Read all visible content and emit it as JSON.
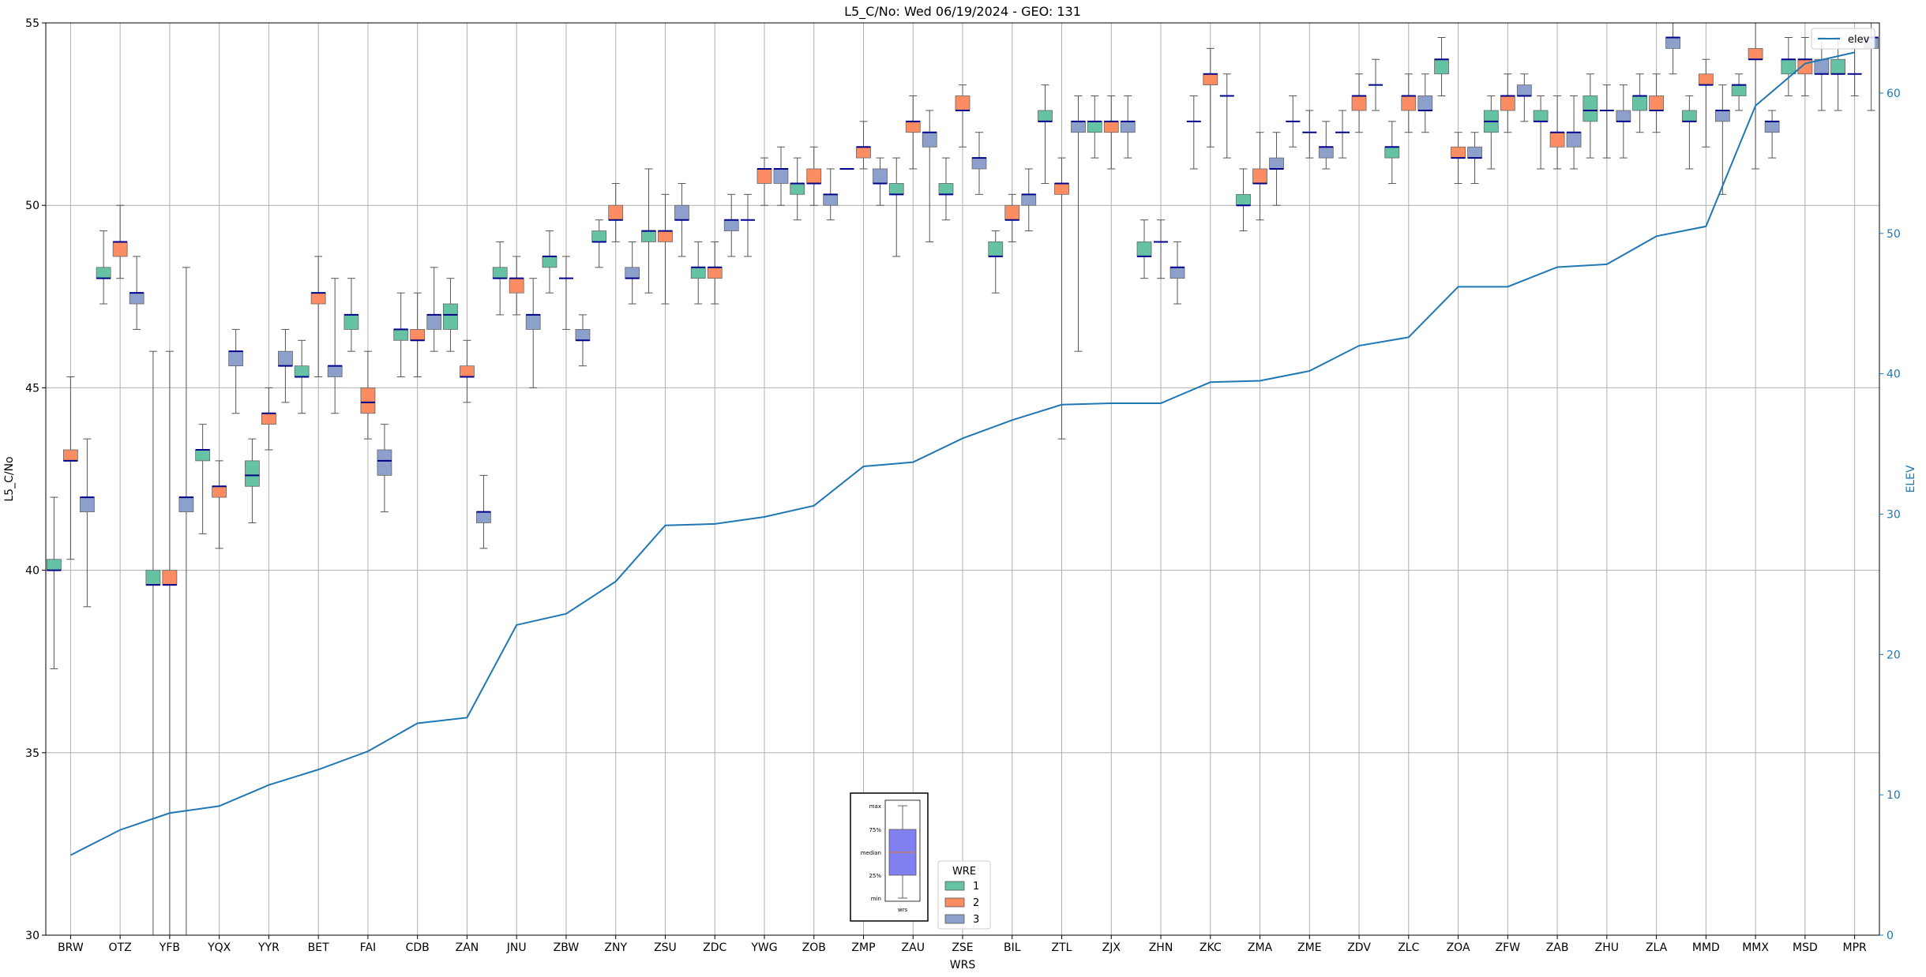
{
  "chart_data": {
    "type": "box",
    "title": "L5_C/No: Wed 06/19/2024 - GEO: 131",
    "xlabel": "WRS",
    "ylabel": "L5_C/No",
    "y2label": "ELEV",
    "ylim": [
      30,
      55
    ],
    "y2lim": [
      0,
      65
    ],
    "yticks": [
      30,
      35,
      40,
      45,
      50,
      55
    ],
    "y2ticks": [
      0,
      10,
      20,
      30,
      40,
      50,
      60
    ],
    "grid": true,
    "categories": [
      "BRW",
      "OTZ",
      "YFB",
      "YQX",
      "YYR",
      "BET",
      "FAI",
      "CDB",
      "ZAN",
      "JNU",
      "ZBW",
      "ZNY",
      "ZSU",
      "ZDC",
      "YWG",
      "ZOB",
      "ZMP",
      "ZAU",
      "ZSE",
      "BIL",
      "ZTL",
      "ZJX",
      "ZHN",
      "ZKC",
      "ZMA",
      "ZME",
      "ZDV",
      "ZLC",
      "ZOA",
      "ZFW",
      "ZAB",
      "ZHU",
      "ZLA",
      "MMD",
      "MMX",
      "MSD",
      "MPR"
    ],
    "hue_legend": {
      "title": "WRE",
      "entries": [
        {
          "label": "1",
          "color": "#66c2a5"
        },
        {
          "label": "2",
          "color": "#fc8d62"
        },
        {
          "label": "3",
          "color": "#8da0cb"
        }
      ],
      "placement": "bottom-center"
    },
    "line_legend": {
      "label": "elev",
      "color": "#1f77b4",
      "placement": "top-right"
    },
    "key_labels": [
      "max",
      "75%",
      "median",
      "25%",
      "min",
      "wrs"
    ],
    "boxes": [
      {
        "cat": "BRW",
        "wre": 1,
        "min": 37.3,
        "q1": 40.0,
        "med": 40.0,
        "q3": 40.3,
        "max": 42.0
      },
      {
        "cat": "BRW",
        "wre": 2,
        "min": 40.3,
        "q1": 43.0,
        "med": 43.0,
        "q3": 43.3,
        "max": 45.3
      },
      {
        "cat": "BRW",
        "wre": 3,
        "min": 39.0,
        "q1": 41.6,
        "med": 42.0,
        "q3": 42.0,
        "max": 43.6
      },
      {
        "cat": "OTZ",
        "wre": 1,
        "min": 47.3,
        "q1": 48.0,
        "med": 48.0,
        "q3": 48.3,
        "max": 49.3
      },
      {
        "cat": "OTZ",
        "wre": 2,
        "min": 48.0,
        "q1": 48.6,
        "med": 49.0,
        "q3": 49.0,
        "max": 50.0
      },
      {
        "cat": "OTZ",
        "wre": 3,
        "min": 46.6,
        "q1": 47.3,
        "med": 47.6,
        "q3": 47.6,
        "max": 48.6
      },
      {
        "cat": "YFB",
        "wre": 1,
        "min": 30.0,
        "q1": 39.6,
        "med": 39.6,
        "q3": 40.0,
        "max": 46.0
      },
      {
        "cat": "YFB",
        "wre": 2,
        "min": 30.0,
        "q1": 39.6,
        "med": 39.6,
        "q3": 40.0,
        "max": 46.0
      },
      {
        "cat": "YFB",
        "wre": 3,
        "min": 30.0,
        "q1": 41.6,
        "med": 42.0,
        "q3": 42.0,
        "max": 48.3
      },
      {
        "cat": "YQX",
        "wre": 1,
        "min": 41.0,
        "q1": 43.0,
        "med": 43.3,
        "q3": 43.3,
        "max": 44.0
      },
      {
        "cat": "YQX",
        "wre": 2,
        "min": 40.6,
        "q1": 42.0,
        "med": 42.3,
        "q3": 42.3,
        "max": 43.0
      },
      {
        "cat": "YQX",
        "wre": 3,
        "min": 44.3,
        "q1": 45.6,
        "med": 46.0,
        "q3": 46.0,
        "max": 46.6
      },
      {
        "cat": "YYR",
        "wre": 1,
        "min": 41.3,
        "q1": 42.3,
        "med": 42.6,
        "q3": 43.0,
        "max": 43.6
      },
      {
        "cat": "YYR",
        "wre": 2,
        "min": 43.3,
        "q1": 44.0,
        "med": 44.3,
        "q3": 44.3,
        "max": 45.0
      },
      {
        "cat": "YYR",
        "wre": 3,
        "min": 44.6,
        "q1": 45.6,
        "med": 45.6,
        "q3": 46.0,
        "max": 46.6
      },
      {
        "cat": "BET",
        "wre": 1,
        "min": 44.3,
        "q1": 45.3,
        "med": 45.3,
        "q3": 45.6,
        "max": 46.3
      },
      {
        "cat": "BET",
        "wre": 2,
        "min": 45.3,
        "q1": 47.3,
        "med": 47.6,
        "q3": 47.6,
        "max": 48.6
      },
      {
        "cat": "BET",
        "wre": 3,
        "min": 44.3,
        "q1": 45.3,
        "med": 45.6,
        "q3": 45.6,
        "max": 48.0
      },
      {
        "cat": "FAI",
        "wre": 1,
        "min": 46.0,
        "q1": 46.6,
        "med": 47.0,
        "q3": 47.0,
        "max": 48.0
      },
      {
        "cat": "FAI",
        "wre": 2,
        "min": 43.6,
        "q1": 44.3,
        "med": 44.6,
        "q3": 45.0,
        "max": 46.0
      },
      {
        "cat": "FAI",
        "wre": 3,
        "min": 41.6,
        "q1": 42.6,
        "med": 43.0,
        "q3": 43.3,
        "max": 44.0
      },
      {
        "cat": "CDB",
        "wre": 1,
        "min": 45.3,
        "q1": 46.3,
        "med": 46.6,
        "q3": 46.6,
        "max": 47.6
      },
      {
        "cat": "CDB",
        "wre": 2,
        "min": 45.3,
        "q1": 46.3,
        "med": 46.3,
        "q3": 46.6,
        "max": 47.6
      },
      {
        "cat": "CDB",
        "wre": 3,
        "min": 46.0,
        "q1": 46.6,
        "med": 47.0,
        "q3": 47.0,
        "max": 48.3
      },
      {
        "cat": "ZAN",
        "wre": 1,
        "min": 46.0,
        "q1": 46.6,
        "med": 47.0,
        "q3": 47.3,
        "max": 48.0
      },
      {
        "cat": "ZAN",
        "wre": 2,
        "min": 44.6,
        "q1": 45.3,
        "med": 45.3,
        "q3": 45.6,
        "max": 46.3
      },
      {
        "cat": "ZAN",
        "wre": 3,
        "min": 40.6,
        "q1": 41.3,
        "med": 41.6,
        "q3": 41.6,
        "max": 42.6
      },
      {
        "cat": "JNU",
        "wre": 1,
        "min": 47.0,
        "q1": 48.0,
        "med": 48.0,
        "q3": 48.3,
        "max": 49.0
      },
      {
        "cat": "JNU",
        "wre": 2,
        "min": 47.0,
        "q1": 47.6,
        "med": 48.0,
        "q3": 48.0,
        "max": 48.6
      },
      {
        "cat": "JNU",
        "wre": 3,
        "min": 45.0,
        "q1": 46.6,
        "med": 47.0,
        "q3": 47.0,
        "max": 48.0
      },
      {
        "cat": "ZBW",
        "wre": 1,
        "min": 47.6,
        "q1": 48.3,
        "med": 48.6,
        "q3": 48.6,
        "max": 49.3
      },
      {
        "cat": "ZBW",
        "wre": 2,
        "min": 46.6,
        "q1": 48.0,
        "med": 48.0,
        "q3": 48.0,
        "max": 48.6
      },
      {
        "cat": "ZBW",
        "wre": 3,
        "min": 45.6,
        "q1": 46.3,
        "med": 46.3,
        "q3": 46.6,
        "max": 47.0
      },
      {
        "cat": "ZNY",
        "wre": 1,
        "min": 48.3,
        "q1": 49.0,
        "med": 49.0,
        "q3": 49.3,
        "max": 49.6
      },
      {
        "cat": "ZNY",
        "wre": 2,
        "min": 49.0,
        "q1": 49.6,
        "med": 49.6,
        "q3": 50.0,
        "max": 50.6
      },
      {
        "cat": "ZNY",
        "wre": 3,
        "min": 47.3,
        "q1": 48.0,
        "med": 48.0,
        "q3": 48.3,
        "max": 49.0
      },
      {
        "cat": "ZSU",
        "wre": 1,
        "min": 47.6,
        "q1": 49.0,
        "med": 49.3,
        "q3": 49.3,
        "max": 51.0
      },
      {
        "cat": "ZSU",
        "wre": 2,
        "min": 47.3,
        "q1": 49.0,
        "med": 49.3,
        "q3": 49.3,
        "max": 50.3
      },
      {
        "cat": "ZSU",
        "wre": 3,
        "min": 48.6,
        "q1": 49.6,
        "med": 49.6,
        "q3": 50.0,
        "max": 50.6
      },
      {
        "cat": "ZDC",
        "wre": 1,
        "min": 47.3,
        "q1": 48.0,
        "med": 48.3,
        "q3": 48.3,
        "max": 49.0
      },
      {
        "cat": "ZDC",
        "wre": 2,
        "min": 47.3,
        "q1": 48.0,
        "med": 48.3,
        "q3": 48.3,
        "max": 49.0
      },
      {
        "cat": "ZDC",
        "wre": 3,
        "min": 48.6,
        "q1": 49.3,
        "med": 49.6,
        "q3": 49.6,
        "max": 50.3
      },
      {
        "cat": "YWG",
        "wre": 1,
        "min": 48.6,
        "q1": 49.6,
        "med": 49.6,
        "q3": 49.6,
        "max": 50.3
      },
      {
        "cat": "YWG",
        "wre": 2,
        "min": 50.0,
        "q1": 50.6,
        "med": 51.0,
        "q3": 51.0,
        "max": 51.3
      },
      {
        "cat": "YWG",
        "wre": 3,
        "min": 50.0,
        "q1": 50.6,
        "med": 51.0,
        "q3": 51.0,
        "max": 51.6
      },
      {
        "cat": "ZOB",
        "wre": 1,
        "min": 49.6,
        "q1": 50.3,
        "med": 50.6,
        "q3": 50.6,
        "max": 51.3
      },
      {
        "cat": "ZOB",
        "wre": 2,
        "min": 50.0,
        "q1": 50.6,
        "med": 50.6,
        "q3": 51.0,
        "max": 51.6
      },
      {
        "cat": "ZOB",
        "wre": 3,
        "min": 49.6,
        "q1": 50.0,
        "med": 50.3,
        "q3": 50.3,
        "max": 51.0
      },
      {
        "cat": "ZMP",
        "wre": 1,
        "min": 51.0,
        "q1": 51.0,
        "med": 51.0,
        "q3": 51.0,
        "max": 51.0
      },
      {
        "cat": "ZMP",
        "wre": 2,
        "min": 51.0,
        "q1": 51.3,
        "med": 51.6,
        "q3": 51.6,
        "max": 52.3
      },
      {
        "cat": "ZMP",
        "wre": 3,
        "min": 50.0,
        "q1": 50.6,
        "med": 50.6,
        "q3": 51.0,
        "max": 51.3
      },
      {
        "cat": "ZAU",
        "wre": 1,
        "min": 48.6,
        "q1": 50.3,
        "med": 50.3,
        "q3": 50.6,
        "max": 51.3
      },
      {
        "cat": "ZAU",
        "wre": 2,
        "min": 51.0,
        "q1": 52.0,
        "med": 52.3,
        "q3": 52.3,
        "max": 53.0
      },
      {
        "cat": "ZAU",
        "wre": 3,
        "min": 49.0,
        "q1": 51.6,
        "med": 52.0,
        "q3": 52.0,
        "max": 52.6
      },
      {
        "cat": "ZSE",
        "wre": 1,
        "min": 49.6,
        "q1": 50.3,
        "med": 50.3,
        "q3": 50.6,
        "max": 51.3
      },
      {
        "cat": "ZSE",
        "wre": 2,
        "min": 51.6,
        "q1": 52.6,
        "med": 52.6,
        "q3": 53.0,
        "max": 53.3
      },
      {
        "cat": "ZSE",
        "wre": 3,
        "min": 50.3,
        "q1": 51.0,
        "med": 51.3,
        "q3": 51.3,
        "max": 52.0
      },
      {
        "cat": "BIL",
        "wre": 1,
        "min": 47.6,
        "q1": 48.6,
        "med": 48.6,
        "q3": 49.0,
        "max": 49.3
      },
      {
        "cat": "BIL",
        "wre": 2,
        "min": 49.0,
        "q1": 49.6,
        "med": 49.6,
        "q3": 50.0,
        "max": 50.3
      },
      {
        "cat": "BIL",
        "wre": 3,
        "min": 49.3,
        "q1": 50.0,
        "med": 50.3,
        "q3": 50.3,
        "max": 51.0
      },
      {
        "cat": "ZTL",
        "wre": 1,
        "min": 50.6,
        "q1": 52.3,
        "med": 52.3,
        "q3": 52.6,
        "max": 53.3
      },
      {
        "cat": "ZTL",
        "wre": 2,
        "min": 43.6,
        "q1": 50.3,
        "med": 50.6,
        "q3": 50.6,
        "max": 51.3
      },
      {
        "cat": "ZTL",
        "wre": 3,
        "min": 46.0,
        "q1": 52.0,
        "med": 52.3,
        "q3": 52.3,
        "max": 53.0
      },
      {
        "cat": "ZJX",
        "wre": 1,
        "min": 51.3,
        "q1": 52.0,
        "med": 52.3,
        "q3": 52.3,
        "max": 53.0
      },
      {
        "cat": "ZJX",
        "wre": 2,
        "min": 51.0,
        "q1": 52.0,
        "med": 52.3,
        "q3": 52.3,
        "max": 53.0
      },
      {
        "cat": "ZJX",
        "wre": 3,
        "min": 51.3,
        "q1": 52.0,
        "med": 52.3,
        "q3": 52.3,
        "max": 53.0
      },
      {
        "cat": "ZHN",
        "wre": 1,
        "min": 48.0,
        "q1": 48.6,
        "med": 48.6,
        "q3": 49.0,
        "max": 49.6
      },
      {
        "cat": "ZHN",
        "wre": 2,
        "min": 48.0,
        "q1": 49.0,
        "med": 49.0,
        "q3": 49.0,
        "max": 49.6
      },
      {
        "cat": "ZHN",
        "wre": 3,
        "min": 47.3,
        "q1": 48.0,
        "med": 48.3,
        "q3": 48.3,
        "max": 49.0
      },
      {
        "cat": "ZKC",
        "wre": 1,
        "min": 51.0,
        "q1": 52.3,
        "med": 52.3,
        "q3": 52.3,
        "max": 53.0
      },
      {
        "cat": "ZKC",
        "wre": 2,
        "min": 51.6,
        "q1": 53.3,
        "med": 53.6,
        "q3": 53.6,
        "max": 54.3
      },
      {
        "cat": "ZKC",
        "wre": 3,
        "min": 51.3,
        "q1": 53.0,
        "med": 53.0,
        "q3": 53.0,
        "max": 53.6
      },
      {
        "cat": "ZMA",
        "wre": 1,
        "min": 49.3,
        "q1": 50.0,
        "med": 50.0,
        "q3": 50.3,
        "max": 51.0
      },
      {
        "cat": "ZMA",
        "wre": 2,
        "min": 49.6,
        "q1": 50.6,
        "med": 50.6,
        "q3": 51.0,
        "max": 52.0
      },
      {
        "cat": "ZMA",
        "wre": 3,
        "min": 50.0,
        "q1": 51.0,
        "med": 51.0,
        "q3": 51.3,
        "max": 52.0
      },
      {
        "cat": "ZME",
        "wre": 1,
        "min": 51.6,
        "q1": 52.3,
        "med": 52.3,
        "q3": 52.3,
        "max": 53.0
      },
      {
        "cat": "ZME",
        "wre": 2,
        "min": 51.3,
        "q1": 52.0,
        "med": 52.0,
        "q3": 52.0,
        "max": 52.6
      },
      {
        "cat": "ZME",
        "wre": 3,
        "min": 51.0,
        "q1": 51.3,
        "med": 51.6,
        "q3": 51.6,
        "max": 52.3
      },
      {
        "cat": "ZDV",
        "wre": 1,
        "min": 51.3,
        "q1": 52.0,
        "med": 52.0,
        "q3": 52.0,
        "max": 52.6
      },
      {
        "cat": "ZDV",
        "wre": 2,
        "min": 52.0,
        "q1": 52.6,
        "med": 53.0,
        "q3": 53.0,
        "max": 53.6
      },
      {
        "cat": "ZDV",
        "wre": 3,
        "min": 52.6,
        "q1": 53.3,
        "med": 53.3,
        "q3": 53.3,
        "max": 54.0
      },
      {
        "cat": "ZLC",
        "wre": 1,
        "min": 50.6,
        "q1": 51.3,
        "med": 51.6,
        "q3": 51.6,
        "max": 52.3
      },
      {
        "cat": "ZLC",
        "wre": 2,
        "min": 52.0,
        "q1": 52.6,
        "med": 53.0,
        "q3": 53.0,
        "max": 53.6
      },
      {
        "cat": "ZLC",
        "wre": 3,
        "min": 52.0,
        "q1": 52.6,
        "med": 52.6,
        "q3": 53.0,
        "max": 53.6
      },
      {
        "cat": "ZOA",
        "wre": 1,
        "min": 53.0,
        "q1": 53.6,
        "med": 54.0,
        "q3": 54.0,
        "max": 54.6
      },
      {
        "cat": "ZOA",
        "wre": 2,
        "min": 50.6,
        "q1": 51.3,
        "med": 51.3,
        "q3": 51.6,
        "max": 52.0
      },
      {
        "cat": "ZOA",
        "wre": 3,
        "min": 50.6,
        "q1": 51.3,
        "med": 51.3,
        "q3": 51.6,
        "max": 52.0
      },
      {
        "cat": "ZFW",
        "wre": 1,
        "min": 51.0,
        "q1": 52.0,
        "med": 52.3,
        "q3": 52.6,
        "max": 53.0
      },
      {
        "cat": "ZFW",
        "wre": 2,
        "min": 52.0,
        "q1": 52.6,
        "med": 53.0,
        "q3": 53.0,
        "max": 53.6
      },
      {
        "cat": "ZFW",
        "wre": 3,
        "min": 52.3,
        "q1": 53.0,
        "med": 53.0,
        "q3": 53.3,
        "max": 53.6
      },
      {
        "cat": "ZAB",
        "wre": 1,
        "min": 51.0,
        "q1": 52.3,
        "med": 52.3,
        "q3": 52.6,
        "max": 53.0
      },
      {
        "cat": "ZAB",
        "wre": 2,
        "min": 51.0,
        "q1": 51.6,
        "med": 52.0,
        "q3": 52.0,
        "max": 53.0
      },
      {
        "cat": "ZAB",
        "wre": 3,
        "min": 51.0,
        "q1": 51.6,
        "med": 52.0,
        "q3": 52.0,
        "max": 53.0
      },
      {
        "cat": "ZHU",
        "wre": 1,
        "min": 51.3,
        "q1": 52.3,
        "med": 52.6,
        "q3": 53.0,
        "max": 53.6
      },
      {
        "cat": "ZHU",
        "wre": 2,
        "min": 51.3,
        "q1": 52.6,
        "med": 52.6,
        "q3": 52.6,
        "max": 53.3
      },
      {
        "cat": "ZHU",
        "wre": 3,
        "min": 51.3,
        "q1": 52.3,
        "med": 52.3,
        "q3": 52.6,
        "max": 53.3
      },
      {
        "cat": "ZLA",
        "wre": 1,
        "min": 52.0,
        "q1": 52.6,
        "med": 53.0,
        "q3": 53.0,
        "max": 53.6
      },
      {
        "cat": "ZLA",
        "wre": 2,
        "min": 52.0,
        "q1": 52.6,
        "med": 52.6,
        "q3": 53.0,
        "max": 53.6
      },
      {
        "cat": "ZLA",
        "wre": 3,
        "min": 53.6,
        "q1": 54.3,
        "med": 54.6,
        "q3": 54.6,
        "max": 55.0
      },
      {
        "cat": "MMD",
        "wre": 1,
        "min": 51.0,
        "q1": 52.3,
        "med": 52.3,
        "q3": 52.6,
        "max": 53.0
      },
      {
        "cat": "MMD",
        "wre": 2,
        "min": 51.6,
        "q1": 53.3,
        "med": 53.3,
        "q3": 53.6,
        "max": 54.0
      },
      {
        "cat": "MMD",
        "wre": 3,
        "min": 50.3,
        "q1": 52.3,
        "med": 52.6,
        "q3": 52.6,
        "max": 53.3
      },
      {
        "cat": "MMX",
        "wre": 1,
        "min": 52.6,
        "q1": 53.0,
        "med": 53.3,
        "q3": 53.3,
        "max": 53.6
      },
      {
        "cat": "MMX",
        "wre": 2,
        "min": 51.0,
        "q1": 54.0,
        "med": 54.0,
        "q3": 54.3,
        "max": 55.0
      },
      {
        "cat": "MMX",
        "wre": 3,
        "min": 51.3,
        "q1": 52.0,
        "med": 52.3,
        "q3": 52.3,
        "max": 52.6
      },
      {
        "cat": "MSD",
        "wre": 1,
        "min": 53.0,
        "q1": 53.6,
        "med": 54.0,
        "q3": 54.0,
        "max": 54.6
      },
      {
        "cat": "MSD",
        "wre": 2,
        "min": 53.0,
        "q1": 53.6,
        "med": 54.0,
        "q3": 54.0,
        "max": 54.6
      },
      {
        "cat": "MSD",
        "wre": 3,
        "min": 52.6,
        "q1": 53.6,
        "med": 53.6,
        "q3": 54.0,
        "max": 54.6
      },
      {
        "cat": "MPR",
        "wre": 1,
        "min": 52.6,
        "q1": 53.6,
        "med": 53.6,
        "q3": 54.0,
        "max": 54.6
      },
      {
        "cat": "MPR",
        "wre": 2,
        "min": 53.0,
        "q1": 53.6,
        "med": 53.6,
        "q3": 53.6,
        "max": 54.3
      },
      {
        "cat": "MPR",
        "wre": 3,
        "min": 52.6,
        "q1": 54.3,
        "med": 54.6,
        "q3": 54.6,
        "max": 55.0
      }
    ],
    "elev_series": {
      "name": "elev",
      "color": "#1f77b4",
      "values": [
        5.7,
        7.5,
        8.7,
        9.2,
        10.7,
        11.8,
        13.1,
        15.1,
        15.5,
        22.1,
        22.9,
        25.2,
        29.2,
        29.3,
        29.8,
        30.6,
        33.4,
        33.7,
        35.4,
        36.7,
        37.8,
        37.9,
        37.9,
        39.4,
        39.5,
        40.2,
        42.0,
        42.6,
        46.2,
        46.2,
        47.6,
        47.8,
        49.8,
        50.5,
        59.1,
        62.1,
        62.9
      ]
    },
    "palette": {
      "wre1": "#66c2a5",
      "wre2": "#fc8d62",
      "wre3": "#8da0cb",
      "median": "#00008b",
      "elev": "#1f77b4",
      "grid": "#b0b0b0",
      "key_box": "#8080f0"
    }
  }
}
